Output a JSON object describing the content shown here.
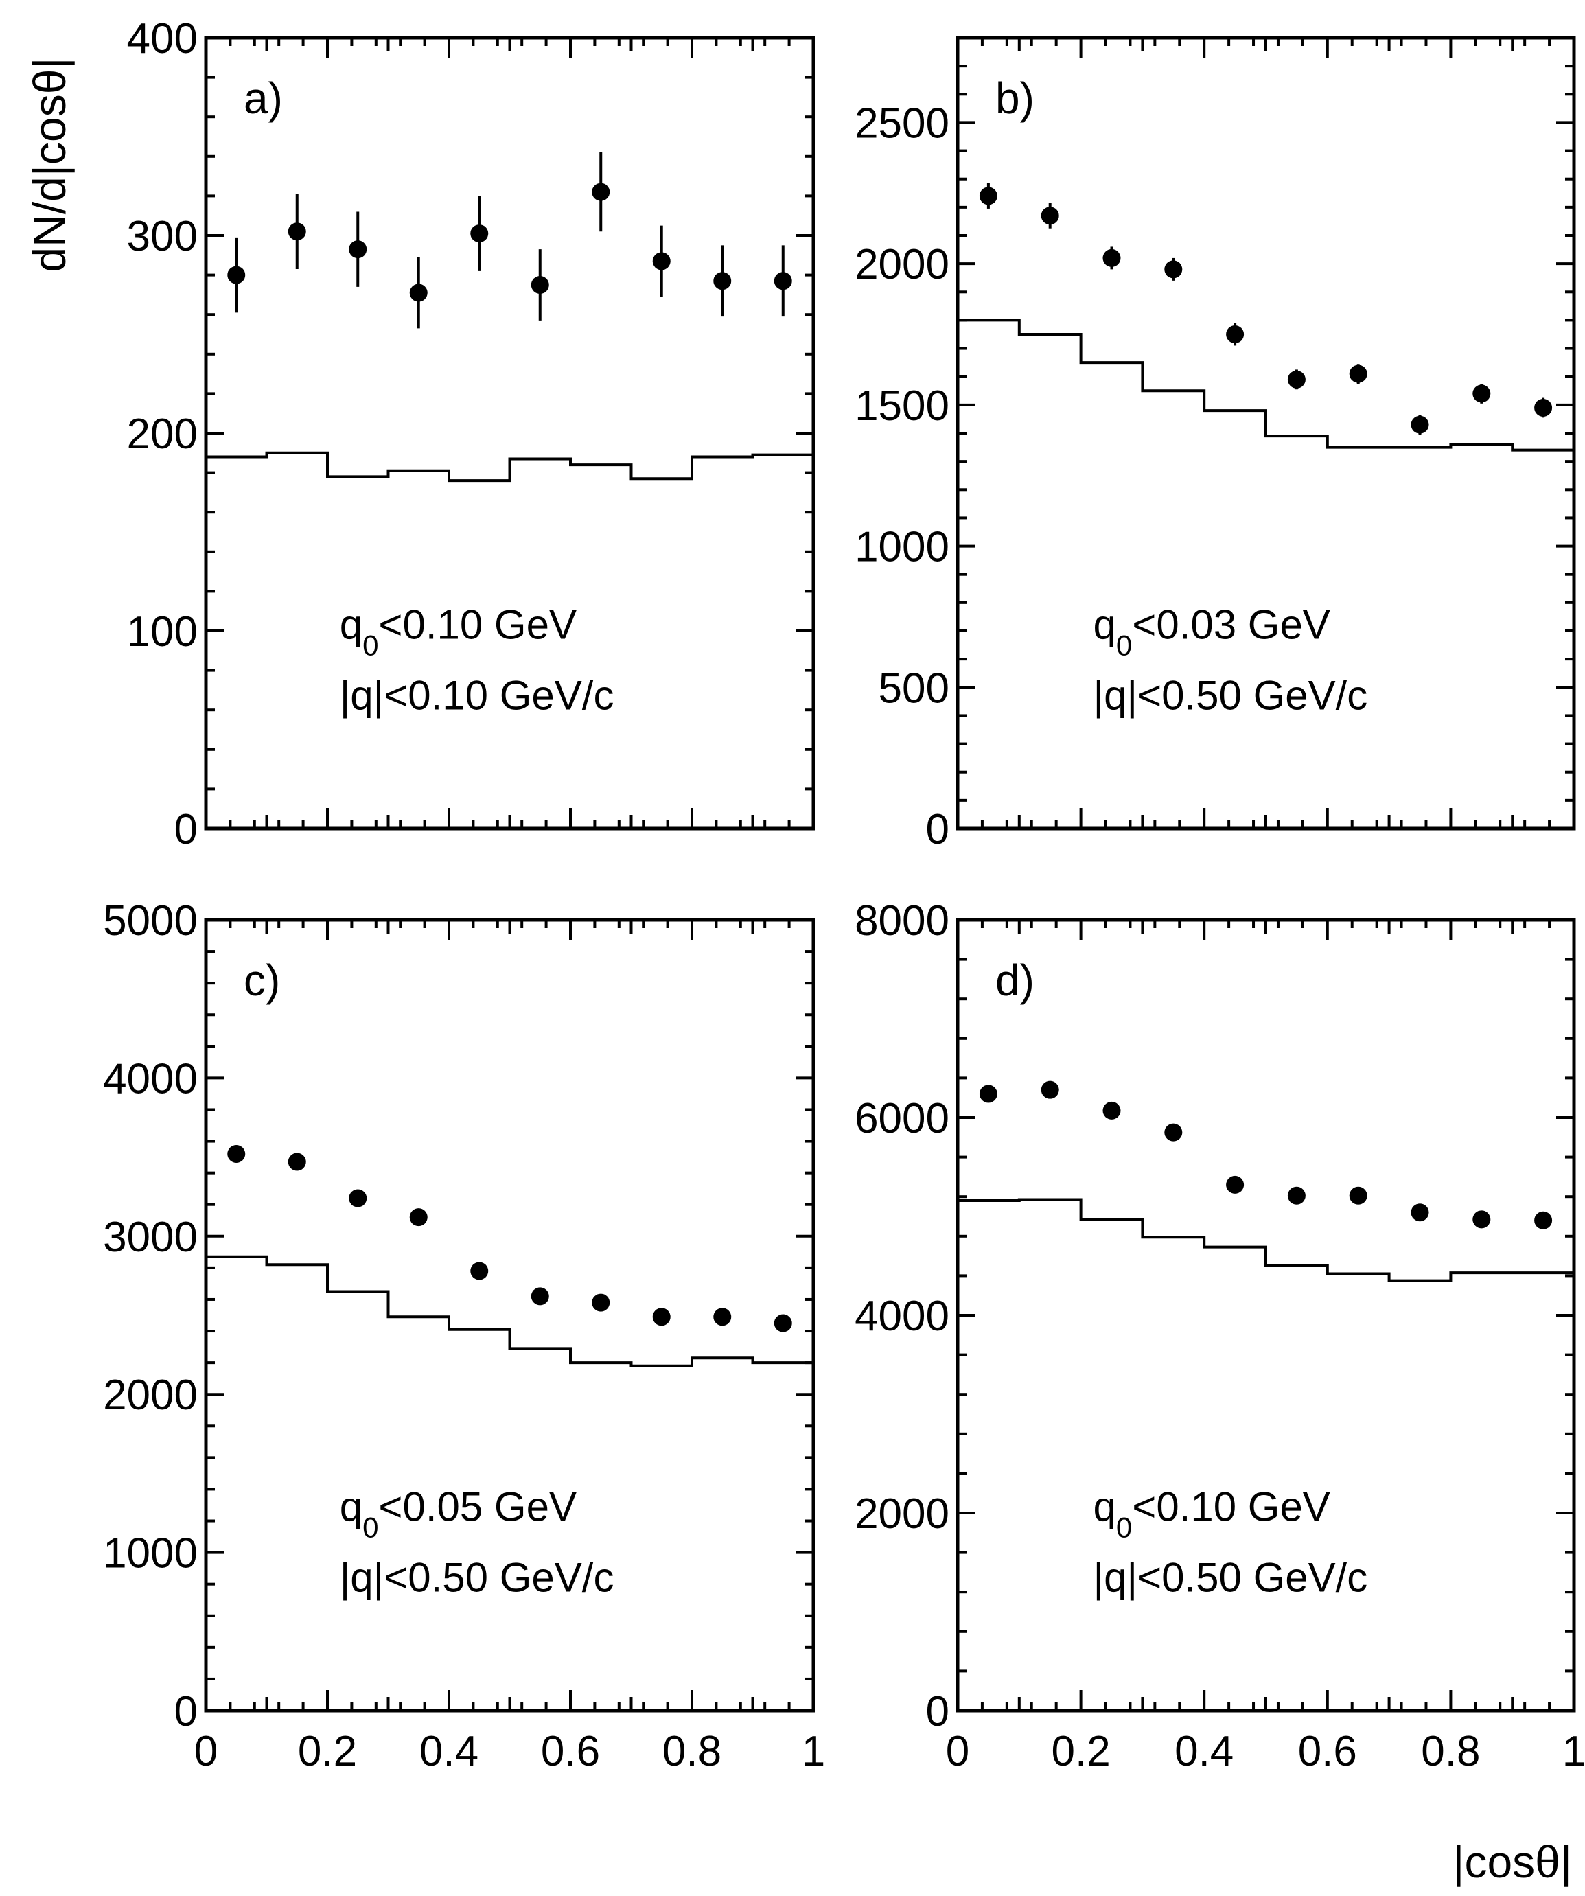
{
  "figure": {
    "ylabel": "dN/d|cosθ|",
    "xlabel": "|cosθ|"
  },
  "chart_data": [
    {
      "type": "scatter",
      "panel": "a)",
      "title": "",
      "xlim": [
        0,
        1
      ],
      "ylim": [
        0,
        400
      ],
      "yticks": [
        0,
        100,
        200,
        300,
        400
      ],
      "xticks": [],
      "cut_lines": [
        "q0<0.10 GeV",
        "|q|<0.10 GeV/c"
      ],
      "series": [
        {
          "style": "points",
          "x": [
            0.05,
            0.15,
            0.25,
            0.35,
            0.45,
            0.55,
            0.65,
            0.75,
            0.85,
            0.95
          ],
          "values": [
            280,
            302,
            293,
            271,
            301,
            275,
            322,
            287,
            277,
            277
          ],
          "errors": [
            19,
            19,
            19,
            18,
            19,
            18,
            20,
            18,
            18,
            18
          ]
        },
        {
          "style": "histogram",
          "bin_edges": [
            0,
            0.1,
            0.2,
            0.3,
            0.4,
            0.5,
            0.6,
            0.7,
            0.8,
            0.9,
            1.0
          ],
          "values": [
            188,
            190,
            178,
            181,
            176,
            187,
            184,
            177,
            188,
            189
          ]
        }
      ]
    },
    {
      "type": "scatter",
      "panel": "b)",
      "title": "",
      "xlim": [
        0,
        1
      ],
      "ylim": [
        0,
        2800
      ],
      "yticks": [
        0,
        500,
        1000,
        1500,
        2000,
        2500
      ],
      "xticks": [],
      "cut_lines": [
        "q0<0.03 GeV",
        "|q|<0.50 GeV/c"
      ],
      "series": [
        {
          "style": "points",
          "x": [
            0.05,
            0.15,
            0.25,
            0.35,
            0.45,
            0.55,
            0.65,
            0.75,
            0.85,
            0.95
          ],
          "values": [
            2240,
            2170,
            2020,
            1980,
            1750,
            1590,
            1610,
            1430,
            1540,
            1490
          ],
          "errors": [
            45,
            45,
            40,
            40,
            40,
            35,
            35,
            35,
            35,
            35
          ]
        },
        {
          "style": "histogram",
          "bin_edges": [
            0,
            0.1,
            0.2,
            0.3,
            0.4,
            0.5,
            0.6,
            0.7,
            0.8,
            0.9,
            1.0
          ],
          "values": [
            1800,
            1750,
            1650,
            1550,
            1480,
            1390,
            1350,
            1350,
            1360,
            1340
          ]
        }
      ]
    },
    {
      "type": "scatter",
      "panel": "c)",
      "title": "",
      "xlim": [
        0,
        1
      ],
      "ylim": [
        0,
        5000
      ],
      "yticks": [
        0,
        1000,
        2000,
        3000,
        4000,
        5000
      ],
      "xticks": [
        "0",
        "0.2",
        "0.4",
        "0.6",
        "0.8",
        "1"
      ],
      "cut_lines": [
        "q0<0.05 GeV",
        "|q|<0.50 GeV/c"
      ],
      "series": [
        {
          "style": "points",
          "x": [
            0.05,
            0.15,
            0.25,
            0.35,
            0.45,
            0.55,
            0.65,
            0.75,
            0.85,
            0.95
          ],
          "values": [
            3520,
            3470,
            3240,
            3120,
            2780,
            2620,
            2580,
            2490,
            2490,
            2450
          ],
          "errors": [
            0,
            0,
            0,
            0,
            0,
            0,
            0,
            0,
            0,
            0
          ]
        },
        {
          "style": "histogram",
          "bin_edges": [
            0,
            0.1,
            0.2,
            0.3,
            0.4,
            0.5,
            0.6,
            0.7,
            0.8,
            0.9,
            1.0
          ],
          "values": [
            2870,
            2820,
            2650,
            2490,
            2410,
            2290,
            2200,
            2180,
            2230,
            2200
          ]
        }
      ]
    },
    {
      "type": "scatter",
      "panel": "d)",
      "title": "",
      "xlim": [
        0,
        1
      ],
      "ylim": [
        0,
        8000
      ],
      "yticks": [
        0,
        2000,
        4000,
        6000,
        8000
      ],
      "xticks": [
        "0",
        "0.2",
        "0.4",
        "0.6",
        "0.8",
        "1"
      ],
      "cut_lines": [
        "q0<0.10 GeV",
        "|q|<0.50 GeV/c"
      ],
      "series": [
        {
          "style": "points",
          "x": [
            0.05,
            0.15,
            0.25,
            0.35,
            0.45,
            0.55,
            0.65,
            0.75,
            0.85,
            0.95
          ],
          "values": [
            6240,
            6280,
            6070,
            5850,
            5320,
            5210,
            5210,
            5040,
            4970,
            4960
          ],
          "errors": [
            0,
            0,
            0,
            0,
            0,
            0,
            0,
            0,
            0,
            0
          ]
        },
        {
          "style": "histogram",
          "bin_edges": [
            0,
            0.1,
            0.2,
            0.3,
            0.4,
            0.5,
            0.6,
            0.7,
            0.8,
            0.9,
            1.0
          ],
          "values": [
            5160,
            5170,
            4970,
            4790,
            4690,
            4500,
            4420,
            4350,
            4430,
            4430
          ]
        }
      ]
    }
  ]
}
